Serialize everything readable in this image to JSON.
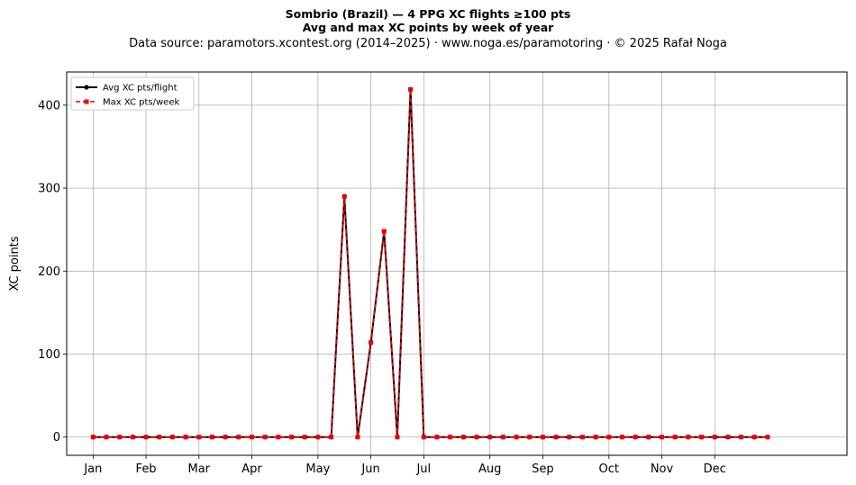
{
  "chart_data": {
    "type": "line",
    "title": "Sombrio (Brazil)  —  4 PPG XC flights ≥100 pts",
    "subtitle": "Avg and max XC points by week of year",
    "source": "Data source: paramotors.xcontest.org (2014–2025)  ·  www.noga.es/paramotoring  ·  © 2025 Rafał Noga",
    "xlabel": "",
    "ylabel": "XC points",
    "xlim": [
      -2,
      57
    ],
    "ylim": [
      -22,
      440
    ],
    "yticks": [
      0,
      100,
      200,
      300,
      400
    ],
    "xticks": [
      {
        "label": "Jan",
        "week": 0
      },
      {
        "label": "Feb",
        "week": 4
      },
      {
        "label": "Mar",
        "week": 8
      },
      {
        "label": "Apr",
        "week": 12
      },
      {
        "label": "May",
        "week": 17
      },
      {
        "label": "Jun",
        "week": 21
      },
      {
        "label": "Jul",
        "week": 25
      },
      {
        "label": "Aug",
        "week": 30
      },
      {
        "label": "Sep",
        "week": 34
      },
      {
        "label": "Oct",
        "week": 39
      },
      {
        "label": "Nov",
        "week": 43
      },
      {
        "label": "Dec",
        "week": 47
      }
    ],
    "grid": true,
    "legend_position": "top-left",
    "x": [
      0,
      1,
      2,
      3,
      4,
      5,
      6,
      7,
      8,
      9,
      10,
      11,
      12,
      13,
      14,
      15,
      16,
      17,
      18,
      19,
      20,
      21,
      22,
      23,
      24,
      25,
      26,
      27,
      28,
      29,
      30,
      31,
      32,
      33,
      34,
      35,
      36,
      37,
      38,
      39,
      40,
      41,
      42,
      43,
      44,
      45,
      46,
      47,
      48,
      49,
      50,
      51
    ],
    "series": [
      {
        "name": "Avg XC pts/flight",
        "color": "#000000",
        "style": "solid",
        "marker": "circle",
        "values": [
          0,
          0,
          0,
          0,
          0,
          0,
          0,
          0,
          0,
          0,
          0,
          0,
          0,
          0,
          0,
          0,
          0,
          0,
          0,
          290,
          0,
          114,
          248,
          0,
          419,
          0,
          0,
          0,
          0,
          0,
          0,
          0,
          0,
          0,
          0,
          0,
          0,
          0,
          0,
          0,
          0,
          0,
          0,
          0,
          0,
          0,
          0,
          0,
          0,
          0,
          0,
          0
        ]
      },
      {
        "name": "Max XC pts/week",
        "color": "#e8000b",
        "style": "dashed",
        "marker": "square",
        "values": [
          0,
          0,
          0,
          0,
          0,
          0,
          0,
          0,
          0,
          0,
          0,
          0,
          0,
          0,
          0,
          0,
          0,
          0,
          0,
          290,
          0,
          114,
          248,
          0,
          419,
          0,
          0,
          0,
          0,
          0,
          0,
          0,
          0,
          0,
          0,
          0,
          0,
          0,
          0,
          0,
          0,
          0,
          0,
          0,
          0,
          0,
          0,
          0,
          0,
          0,
          0,
          0
        ]
      }
    ]
  }
}
